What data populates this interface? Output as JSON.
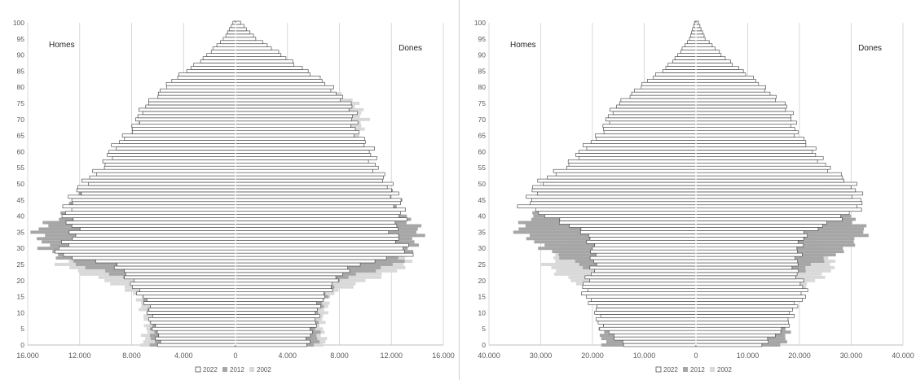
{
  "legend": [
    "2022",
    "2012",
    "2002"
  ],
  "colors": {
    "2022_fill": "#ffffff",
    "2022_stroke": "#3a3a3a",
    "2012": "#a6a6a6",
    "2002": "#d9d9d9",
    "grid": "#d9d9d9"
  },
  "chart_data": [
    {
      "type": "bar",
      "subtype": "population-pyramid",
      "left_label": "Homes",
      "right_label": "Dones",
      "xlim": [
        -16000,
        16000
      ],
      "x_ticks": [
        -16000,
        -12000,
        -8000,
        -4000,
        0,
        4000,
        8000,
        12000,
        16000
      ],
      "x_tick_labels": [
        "16.000",
        "12.000",
        "8.000",
        "4.000",
        "0",
        "4.000",
        "8.000",
        "12.000",
        "16.000"
      ],
      "ylim": [
        0,
        100
      ],
      "y_ticks": [
        0,
        5,
        10,
        15,
        20,
        25,
        30,
        35,
        40,
        45,
        50,
        55,
        60,
        65,
        70,
        75,
        80,
        85,
        90,
        95,
        100
      ],
      "series": [
        {
          "name": "2022",
          "anchors_age": [
            0,
            5,
            10,
            15,
            20,
            25,
            28,
            32,
            36,
            40,
            45,
            50,
            55,
            60,
            65,
            70,
            75,
            80,
            85,
            90,
            95,
            100
          ],
          "men": [
            6000,
            6200,
            6600,
            7200,
            8000,
            9500,
            13500,
            13000,
            12500,
            12800,
            13000,
            11500,
            10500,
            9500,
            8500,
            7500,
            6800,
            5500,
            3800,
            2200,
            900,
            200
          ],
          "women": [
            5600,
            5900,
            6300,
            6800,
            7600,
            9500,
            13000,
            12800,
            12300,
            12600,
            12800,
            11500,
            11000,
            10300,
            9600,
            9000,
            8800,
            7300,
            5500,
            3600,
            1600,
            400
          ]
        },
        {
          "name": "2012",
          "anchors_age": [
            0,
            5,
            10,
            15,
            20,
            25,
            30,
            35,
            40,
            45,
            50,
            55,
            60,
            65,
            70,
            75,
            80,
            85,
            90,
            95,
            100
          ],
          "men": [
            6500,
            6300,
            6600,
            7000,
            8000,
            12000,
            15000,
            15200,
            13500,
            12500,
            11000,
            10000,
            9000,
            8000,
            7000,
            6000,
            4500,
            3000,
            1500,
            500,
            100
          ],
          "women": [
            6300,
            6200,
            6400,
            6800,
            8000,
            12000,
            14000,
            14000,
            13200,
            12300,
            11200,
            10200,
            9500,
            8800,
            8200,
            7500,
            6500,
            4800,
            2800,
            1000,
            200
          ]
        },
        {
          "name": "2002",
          "anchors_age": [
            0,
            5,
            10,
            15,
            20,
            25,
            30,
            35,
            40,
            45,
            50,
            55,
            60,
            65,
            70,
            75,
            80,
            85,
            90,
            95,
            100
          ],
          "men": [
            7000,
            7000,
            7000,
            7500,
            10000,
            13500,
            13000,
            12500,
            11500,
            10500,
            9500,
            8500,
            7800,
            7500,
            7500,
            6000,
            4000,
            2000,
            800,
            200,
            50
          ],
          "women": [
            6800,
            6800,
            6800,
            7200,
            10000,
            13500,
            13200,
            12500,
            11500,
            10800,
            10000,
            9200,
            9000,
            9200,
            10200,
            9200,
            7000,
            4000,
            1800,
            500,
            100
          ]
        }
      ]
    },
    {
      "type": "bar",
      "subtype": "population-pyramid",
      "left_label": "Homes",
      "right_label": "Dones",
      "xlim": [
        -40000,
        40000
      ],
      "x_ticks": [
        -40000,
        -30000,
        -20000,
        -10000,
        0,
        10000,
        20000,
        30000,
        40000
      ],
      "x_tick_labels": [
        "40.000",
        "30.000",
        "20.000",
        "10.000",
        "0",
        "10.000",
        "20.000",
        "30.000",
        "40.000"
      ],
      "ylim": [
        0,
        100
      ],
      "y_ticks": [
        0,
        5,
        10,
        15,
        20,
        25,
        30,
        35,
        40,
        45,
        50,
        55,
        60,
        65,
        70,
        75,
        80,
        85,
        90,
        95,
        100
      ],
      "series": [
        {
          "name": "2022",
          "anchors_age": [
            0,
            5,
            10,
            15,
            20,
            25,
            30,
            35,
            40,
            43,
            47,
            50,
            55,
            60,
            65,
            70,
            75,
            80,
            85,
            90,
            95,
            100
          ],
          "men": [
            14000,
            18000,
            19000,
            21500,
            21000,
            20000,
            19500,
            22000,
            28000,
            33500,
            32000,
            30000,
            26000,
            22000,
            19000,
            17000,
            15000,
            11000,
            6500,
            3500,
            1200,
            300
          ],
          "women": [
            13000,
            17000,
            18500,
            21000,
            20000,
            19500,
            19500,
            22000,
            28000,
            32500,
            31500,
            29500,
            26000,
            22500,
            20000,
            18500,
            17000,
            13000,
            9000,
            5000,
            1800,
            500
          ]
        },
        {
          "name": "2012",
          "anchors_age": [
            0,
            5,
            10,
            15,
            20,
            25,
            30,
            35,
            40,
            45,
            50,
            55,
            60,
            65,
            70,
            75,
            80,
            85,
            90,
            95,
            100
          ],
          "men": [
            18000,
            18000,
            17000,
            17000,
            18000,
            22000,
            30000,
            34000,
            32000,
            28000,
            25000,
            21000,
            18000,
            15000,
            13000,
            11000,
            7000,
            4000,
            1500,
            500,
            100
          ],
          "women": [
            17000,
            17500,
            17000,
            17000,
            18000,
            22000,
            30000,
            32500,
            30000,
            27000,
            24500,
            21000,
            18500,
            16500,
            15000,
            13000,
            9500,
            6000,
            2500,
            800,
            200
          ]
        },
        {
          "name": "2002",
          "anchors_age": [
            0,
            5,
            10,
            15,
            20,
            25,
            30,
            35,
            40,
            45,
            50,
            55,
            60,
            65,
            70,
            75,
            80,
            85,
            90,
            95,
            100
          ],
          "men": [
            17000,
            16500,
            16500,
            18000,
            24000,
            29000,
            26000,
            23000,
            20000,
            18000,
            16500,
            15000,
            13500,
            12000,
            10500,
            8500,
            5500,
            2500,
            900,
            200,
            50
          ],
          "women": [
            16500,
            16000,
            16000,
            17500,
            23000,
            27000,
            25000,
            22000,
            19500,
            17500,
            16500,
            15500,
            14500,
            13500,
            13000,
            11500,
            8500,
            4500,
            1800,
            500,
            100
          ]
        }
      ]
    }
  ]
}
